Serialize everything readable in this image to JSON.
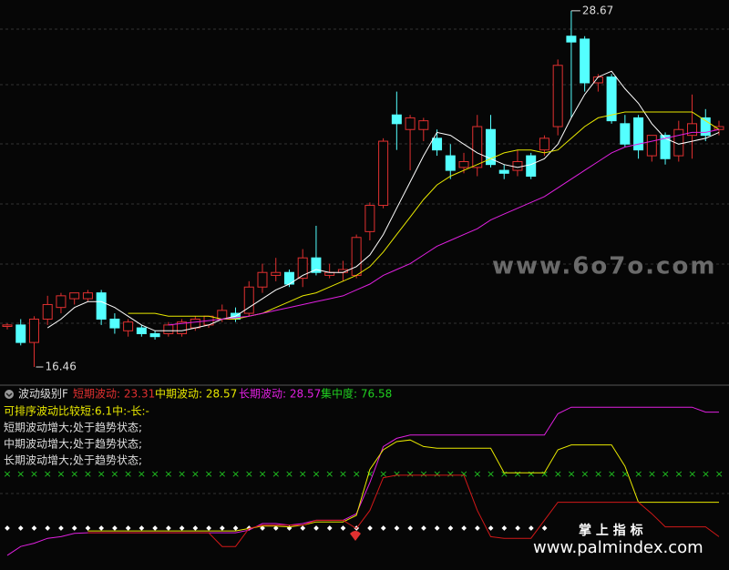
{
  "chart_data": [
    {
      "type": "candlestick",
      "ylim": [
        15.93,
        29.04
      ],
      "up_color": "#e03030",
      "down_color": "#54ffff",
      "ohlc": [
        [
          17.85,
          17.95,
          17.75,
          17.9
        ],
        [
          17.9,
          18.1,
          17.2,
          17.3
        ],
        [
          17.3,
          18.2,
          16.46,
          18.1
        ],
        [
          18.1,
          18.9,
          17.9,
          18.6
        ],
        [
          18.5,
          19.0,
          18.3,
          18.9
        ],
        [
          18.8,
          19.0,
          18.6,
          19.0
        ],
        [
          18.8,
          19.1,
          18.7,
          19.0
        ],
        [
          19.0,
          19.1,
          17.9,
          18.1
        ],
        [
          18.1,
          18.3,
          17.6,
          17.8
        ],
        [
          17.7,
          18.1,
          17.5,
          18.0
        ],
        [
          17.8,
          17.9,
          17.5,
          17.6
        ],
        [
          17.6,
          17.7,
          17.4,
          17.5
        ],
        [
          17.6,
          18.0,
          17.5,
          17.9
        ],
        [
          17.6,
          18.1,
          17.5,
          18.0
        ],
        [
          17.8,
          18.2,
          17.7,
          18.1
        ],
        [
          17.9,
          18.2,
          17.8,
          18.2
        ],
        [
          18.1,
          18.6,
          18.0,
          18.4
        ],
        [
          18.3,
          18.5,
          18.0,
          18.1
        ],
        [
          18.3,
          19.4,
          18.2,
          19.2
        ],
        [
          19.2,
          20.0,
          19.0,
          19.7
        ],
        [
          19.6,
          20.2,
          19.4,
          19.7
        ],
        [
          19.7,
          19.8,
          19.2,
          19.3
        ],
        [
          19.5,
          20.5,
          19.2,
          20.2
        ],
        [
          20.2,
          21.3,
          19.6,
          19.7
        ],
        [
          19.6,
          20.0,
          19.5,
          19.7
        ],
        [
          19.7,
          20.1,
          19.4,
          19.8
        ],
        [
          19.6,
          21.0,
          19.5,
          20.9
        ],
        [
          21.1,
          22.1,
          20.8,
          22.0
        ],
        [
          22.0,
          24.3,
          21.9,
          24.2
        ],
        [
          25.1,
          25.9,
          23.9,
          24.8
        ],
        [
          24.6,
          25.1,
          23.2,
          25.0
        ],
        [
          24.6,
          25.0,
          24.2,
          24.9
        ],
        [
          24.3,
          24.6,
          23.7,
          23.9
        ],
        [
          23.7,
          24.1,
          22.9,
          23.2
        ],
        [
          23.3,
          23.8,
          23.1,
          23.5
        ],
        [
          23.3,
          25.1,
          23.0,
          24.7
        ],
        [
          24.6,
          25.1,
          23.3,
          23.4
        ],
        [
          23.2,
          23.4,
          22.9,
          23.1
        ],
        [
          23.2,
          23.9,
          23.0,
          23.5
        ],
        [
          23.7,
          23.8,
          22.9,
          23.0
        ],
        [
          23.9,
          24.4,
          23.7,
          24.3
        ],
        [
          24.7,
          27.0,
          24.4,
          26.8
        ],
        [
          27.8,
          28.67,
          25.0,
          27.6
        ],
        [
          27.7,
          27.8,
          25.9,
          26.2
        ],
        [
          26.2,
          26.5,
          25.9,
          26.4
        ],
        [
          26.4,
          26.5,
          24.8,
          24.9
        ],
        [
          24.8,
          25.1,
          24.0,
          24.1
        ],
        [
          25.0,
          25.1,
          23.6,
          23.9
        ],
        [
          23.7,
          24.4,
          23.5,
          24.4
        ],
        [
          24.4,
          24.5,
          23.4,
          23.6
        ],
        [
          23.7,
          24.9,
          23.5,
          24.6
        ],
        [
          24.4,
          25.8,
          23.6,
          24.8
        ],
        [
          25.0,
          25.3,
          24.2,
          24.4
        ],
        [
          24.6,
          24.9,
          24.4,
          24.7
        ]
      ],
      "lines": [
        {
          "color": "#ffffff",
          "values": [
            null,
            null,
            null,
            17.8,
            18.1,
            18.5,
            18.7,
            18.7,
            18.5,
            18.2,
            17.9,
            17.7,
            17.7,
            17.7,
            17.8,
            17.9,
            18.1,
            18.2,
            18.5,
            18.8,
            19.1,
            19.3,
            19.6,
            19.8,
            19.7,
            19.7,
            19.9,
            20.3,
            21.0,
            21.9,
            22.8,
            23.7,
            24.5,
            24.4,
            24.1,
            23.8,
            23.6,
            23.4,
            23.3,
            23.4,
            23.6,
            24.1,
            25.0,
            25.8,
            26.4,
            26.6,
            26.0,
            25.5,
            24.8,
            24.3,
            24.1,
            24.2,
            24.3,
            24.5
          ]
        },
        {
          "color": "#e8e800",
          "values": [
            null,
            null,
            null,
            null,
            null,
            null,
            null,
            null,
            null,
            18.3,
            18.3,
            18.3,
            18.2,
            18.2,
            18.2,
            18.2,
            18.1,
            18.1,
            18.2,
            18.3,
            18.5,
            18.7,
            18.9,
            19.0,
            19.2,
            19.4,
            19.6,
            19.9,
            20.4,
            21.0,
            21.6,
            22.2,
            22.7,
            23.0,
            23.2,
            23.4,
            23.6,
            23.8,
            23.9,
            23.9,
            23.8,
            23.9,
            24.3,
            24.7,
            25.0,
            25.1,
            25.2,
            25.2,
            25.2,
            25.2,
            25.2,
            25.2,
            24.9,
            24.6
          ]
        },
        {
          "color": "#e020e0",
          "values": [
            null,
            null,
            null,
            null,
            null,
            null,
            null,
            null,
            null,
            null,
            null,
            null,
            17.9,
            17.95,
            18.0,
            18.05,
            18.1,
            18.15,
            18.2,
            18.3,
            18.4,
            18.5,
            18.6,
            18.7,
            18.8,
            18.9,
            19.1,
            19.3,
            19.6,
            19.8,
            20.0,
            20.3,
            20.6,
            20.8,
            21.0,
            21.2,
            21.5,
            21.7,
            21.9,
            22.1,
            22.3,
            22.6,
            22.9,
            23.2,
            23.5,
            23.8,
            24.0,
            24.1,
            24.2,
            24.3,
            24.4,
            24.5,
            24.5,
            24.6
          ]
        }
      ],
      "annotations": [
        {
          "index": 42,
          "value": 28.67,
          "label": "28.67"
        },
        {
          "index": 2,
          "value": 16.46,
          "label": "16.46"
        }
      ]
    },
    {
      "type": "line",
      "ylim": [
        0,
        100
      ],
      "series": [
        {
          "color": "#e020e0",
          "values": [
            5.6,
            11,
            13,
            16,
            17,
            19,
            19.4,
            19.4,
            19.4,
            19.4,
            19.4,
            19.4,
            19.4,
            19.4,
            19.4,
            19.4,
            19.4,
            19.4,
            21,
            25,
            25,
            24,
            25,
            27,
            27,
            27,
            31,
            50,
            72,
            77,
            79,
            79,
            79,
            79,
            79,
            79,
            79,
            79,
            79,
            79,
            79,
            92,
            96,
            96,
            96,
            96,
            96,
            96,
            96,
            96,
            96,
            96,
            93,
            93
          ]
        },
        {
          "color": "#e8e800",
          "values": [
            null,
            null,
            null,
            null,
            null,
            null,
            20.5,
            20.5,
            20.5,
            20.5,
            20.5,
            20.5,
            20.5,
            20.5,
            20.5,
            20.5,
            20.5,
            20.5,
            22,
            23.5,
            23.5,
            23,
            24,
            26,
            26,
            26,
            30,
            58,
            70,
            75,
            76,
            72,
            71,
            71,
            71,
            71,
            71,
            56,
            56,
            56,
            56,
            70,
            73,
            73,
            73,
            73,
            60,
            38,
            38,
            38,
            38,
            38,
            38,
            38
          ]
        },
        {
          "color": "#d01818",
          "values": [
            null,
            null,
            null,
            null,
            null,
            null,
            19.4,
            19.4,
            19.4,
            19.4,
            19.4,
            19.4,
            19.4,
            19.4,
            19.4,
            19.4,
            11,
            11,
            22,
            24,
            24,
            24,
            24,
            27,
            27,
            27,
            22,
            33,
            53,
            54.5,
            54.5,
            54.5,
            54.5,
            54.5,
            54.5,
            33,
            17,
            16,
            16,
            16,
            27,
            38,
            38,
            38,
            38,
            38,
            38,
            38,
            31,
            23,
            23,
            23,
            23,
            17
          ]
        }
      ]
    }
  ],
  "indicator_header": {
    "title": "波动级别F",
    "items": [
      {
        "text": "短期波动: 23.31",
        "color": "#e03030"
      },
      {
        "text": "中期波动: 28.57",
        "color": "#e8e800"
      },
      {
        "text": "长期波动: 28.57",
        "color": "#e020e0"
      },
      {
        "text": "集中度: 76.58",
        "color": "#20d020"
      }
    ]
  },
  "indicator_lines": [
    {
      "text": "可排序波动比较短:6.1中:-长:-",
      "color": "#e8e800"
    },
    {
      "text": "短期波动增大;处于趋势状态;",
      "color": "#dddddd"
    },
    {
      "text": "中期波动增大;处于趋势状态;",
      "color": "#dddddd"
    },
    {
      "text": "长期波动增大;处于趋势状态;",
      "color": "#dddddd"
    }
  ],
  "watermarks": {
    "site": "www.6o7o.com",
    "brand": "掌 上 指 标",
    "brand_url": "www.palmindex.com"
  }
}
